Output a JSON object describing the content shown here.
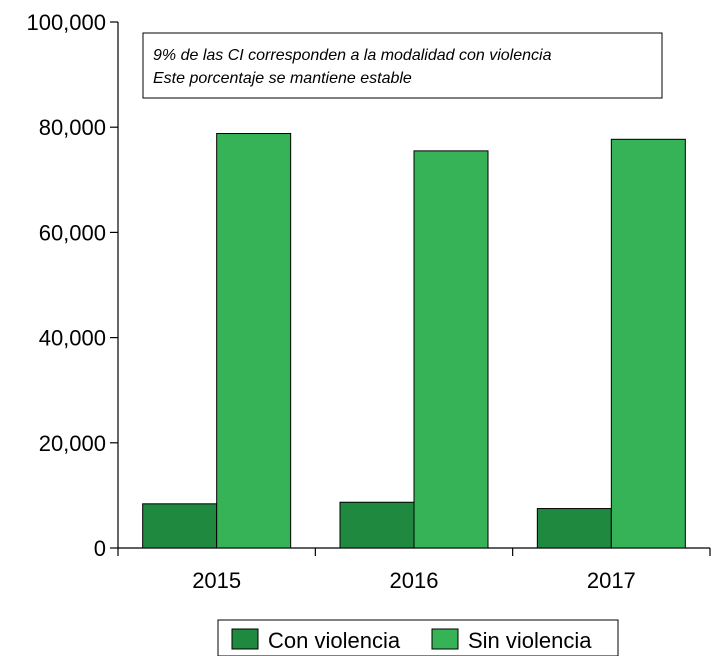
{
  "chart_data": {
    "type": "bar",
    "categories": [
      "2015",
      "2016",
      "2017"
    ],
    "series": [
      {
        "name": "Con violencia",
        "values": [
          8400,
          8700,
          7500
        ],
        "color": "#1f8a3f"
      },
      {
        "name": "Sin violencia",
        "values": [
          78800,
          75500,
          77700
        ],
        "color": "#35b356"
      }
    ],
    "ylim": [
      0,
      100000
    ],
    "yticks": [
      "0",
      "20,000",
      "40,000",
      "60,000",
      "80,000",
      "100,000"
    ],
    "ytick_values": [
      0,
      20000,
      40000,
      60000,
      80000,
      100000
    ],
    "annotation": [
      "9% de las CI corresponden a la modalidad con violencia",
      "Este porcentaje se mantiene estable"
    ],
    "legend_position": "bottom",
    "grid": false
  }
}
